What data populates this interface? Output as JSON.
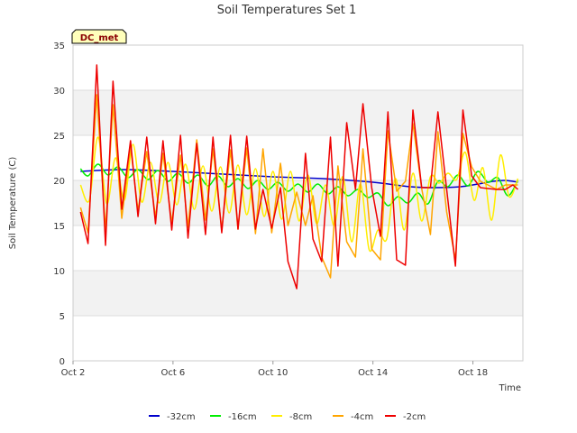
{
  "chart_data": {
    "type": "line",
    "title": "Soil Temperatures Set 1",
    "xlabel": "Time",
    "ylabel": "Soil Temperature (C)",
    "badge": "DC_met",
    "xlim": [
      0,
      18
    ],
    "ylim": [
      0,
      35
    ],
    "x_ticks": [
      {
        "x": 0,
        "label": "Oct 2"
      },
      {
        "x": 4,
        "label": "Oct 6"
      },
      {
        "x": 8,
        "label": "Oct 10"
      },
      {
        "x": 12,
        "label": "Oct 14"
      },
      {
        "x": 16,
        "label": "Oct 18"
      }
    ],
    "y_ticks": [
      0,
      5,
      10,
      15,
      20,
      25,
      30,
      35
    ],
    "grid": true,
    "legend_position": "bottom",
    "series": [
      {
        "name": "-32cm",
        "color": "#0000cc",
        "style": "smooth",
        "x": [
          0.3,
          2,
          4,
          6,
          8,
          10,
          12,
          13.5,
          14.5,
          15.5,
          16.2,
          16.8,
          17.3,
          17.8
        ],
        "y": [
          21,
          21.2,
          21,
          20.7,
          20.4,
          20.2,
          19.8,
          19.3,
          19.2,
          19.3,
          19.6,
          19.9,
          20,
          19.8
        ]
      },
      {
        "name": "-16cm",
        "color": "#00ee00",
        "style": "smooth",
        "x": [
          0.3,
          0.6,
          1,
          1.4,
          1.8,
          2.2,
          2.6,
          3,
          3.4,
          3.8,
          4.2,
          4.6,
          5,
          5.4,
          5.8,
          6.2,
          6.6,
          7,
          7.4,
          7.8,
          8.2,
          8.6,
          9,
          9.4,
          9.8,
          10.2,
          10.6,
          11,
          11.4,
          11.8,
          12.2,
          12.6,
          13,
          13.4,
          13.8,
          14.2,
          14.6,
          15,
          15.4,
          15.8,
          16.2,
          16.6,
          17,
          17.4,
          17.8
        ],
        "y": [
          21.3,
          20.5,
          21.8,
          20.6,
          21.5,
          20.3,
          21.2,
          20.1,
          21.1,
          19.9,
          20.8,
          19.7,
          20.6,
          19.4,
          20.5,
          19.3,
          20.2,
          19.1,
          20,
          19,
          19.8,
          18.8,
          19.6,
          18.7,
          19.6,
          18.5,
          19.3,
          18.3,
          19,
          18.1,
          18.6,
          17.2,
          18.2,
          17.5,
          18.6,
          17.4,
          19.9,
          19.3,
          20.6,
          19.4,
          21,
          19.8,
          20.3,
          18.3,
          20
        ]
      },
      {
        "name": "-8cm",
        "color": "#ffee00",
        "style": "smooth",
        "x": [
          0.3,
          0.65,
          1,
          1.35,
          1.7,
          2.05,
          2.4,
          2.75,
          3.1,
          3.45,
          3.8,
          4.15,
          4.5,
          4.85,
          5.2,
          5.55,
          5.9,
          6.25,
          6.6,
          6.95,
          7.3,
          7.65,
          8,
          8.35,
          8.7,
          9.05,
          9.4,
          9.75,
          10.1,
          10.45,
          10.8,
          11.15,
          11.5,
          11.85,
          12.2,
          12.55,
          12.9,
          13.25,
          13.6,
          13.95,
          14.3,
          14.65,
          15,
          15.35,
          15.7,
          16.05,
          16.4,
          16.75,
          17.1,
          17.45,
          17.8
        ],
        "y": [
          19.5,
          17.8,
          24.8,
          17.4,
          22.5,
          17.8,
          24,
          17.6,
          22,
          17.5,
          22,
          17.3,
          21.8,
          16.8,
          21.6,
          16.6,
          21.5,
          16.4,
          21.7,
          16.2,
          21.3,
          16,
          21,
          15.7,
          21,
          15.5,
          20.6,
          15.2,
          19.5,
          15,
          20.4,
          13.2,
          19.6,
          12.3,
          14.5,
          13.5,
          20.2,
          14.5,
          20.8,
          15.5,
          20.4,
          19.7,
          20.8,
          20.1,
          23.1,
          17.8,
          21.4,
          15.6,
          22.8,
          18.2,
          20.2
        ]
      },
      {
        "name": "-4cm",
        "color": "#ffa500",
        "style": "jagged",
        "x": [
          0.3,
          0.6,
          0.95,
          1.3,
          1.6,
          1.95,
          2.3,
          2.6,
          2.95,
          3.3,
          3.6,
          3.95,
          4.3,
          4.6,
          4.95,
          5.3,
          5.6,
          5.95,
          6.3,
          6.6,
          6.95,
          7.3,
          7.6,
          7.95,
          8.3,
          8.6,
          8.95,
          9.3,
          9.6,
          9.95,
          10.3,
          10.6,
          10.95,
          11.3,
          11.6,
          11.95,
          12.3,
          12.6,
          12.95,
          13.3,
          13.6,
          13.95,
          14.3,
          14.6,
          14.95,
          15.3,
          15.6,
          15.95,
          16.3,
          16.6,
          16.95,
          17.3,
          17.6,
          17.8
        ],
        "y": [
          17,
          14.2,
          29.5,
          14.5,
          28.4,
          15.8,
          23.8,
          16.6,
          23.2,
          15.9,
          23,
          15.3,
          22.8,
          14.8,
          24.5,
          15.6,
          23.5,
          14.5,
          23.4,
          14.6,
          23.6,
          14.1,
          23.5,
          14.2,
          21.9,
          15,
          18.7,
          15,
          18.3,
          11.5,
          9.2,
          21.6,
          13.2,
          11.5,
          23.5,
          12.4,
          11.2,
          25.5,
          18.8,
          19.9,
          26.3,
          19.1,
          14,
          25.4,
          16.5,
          11.2,
          25.2,
          21.5,
          19.9,
          19.5,
          19,
          19.5,
          19.5,
          19.5
        ]
      },
      {
        "name": "-2cm",
        "color": "#ee0000",
        "style": "jagged",
        "x": [
          0.3,
          0.6,
          0.95,
          1.3,
          1.6,
          1.95,
          2.3,
          2.6,
          2.95,
          3.3,
          3.6,
          3.95,
          4.3,
          4.6,
          4.95,
          5.3,
          5.6,
          5.95,
          6.3,
          6.6,
          6.95,
          7.3,
          7.6,
          7.95,
          8.3,
          8.6,
          8.95,
          9.3,
          9.6,
          9.95,
          10.3,
          10.6,
          10.95,
          11.3,
          11.6,
          11.95,
          12.3,
          12.6,
          12.95,
          13.3,
          13.6,
          13.95,
          14.3,
          14.6,
          14.95,
          15.3,
          15.6,
          15.95,
          16.3,
          16.6,
          16.95,
          17.3,
          17.6,
          17.8
        ],
        "y": [
          16.5,
          13,
          32.8,
          12.8,
          31,
          16.8,
          24.4,
          16,
          24.8,
          15.2,
          24.4,
          14.5,
          25,
          13.6,
          24.1,
          14,
          24.8,
          14.2,
          25,
          14.6,
          24.9,
          14.6,
          19,
          14.7,
          19.2,
          11,
          8,
          23,
          13.5,
          11,
          24.8,
          10.5,
          26.4,
          19,
          28.5,
          19.2,
          13.8,
          27.6,
          11.2,
          10.6,
          27.8,
          19.2,
          19.2,
          27.6,
          19,
          10.5,
          27.8,
          20.5,
          19.2,
          19.1,
          19,
          19,
          19.5,
          19
        ]
      }
    ]
  }
}
